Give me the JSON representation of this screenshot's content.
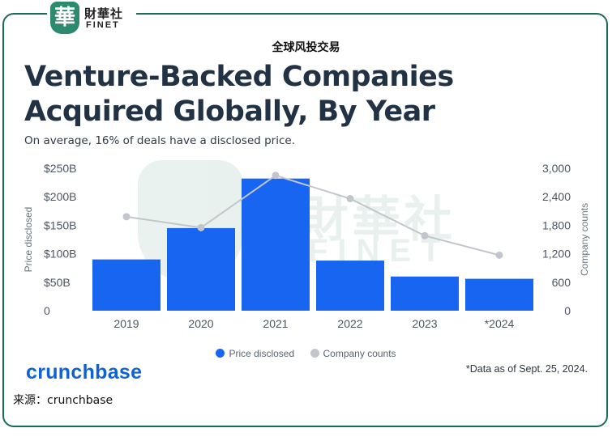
{
  "logo": {
    "seal_char": "華",
    "cn": "財華社",
    "en": "FINET"
  },
  "top_label": "全球风投交易",
  "title": "Venture-Backed Companies Acquired Globally, By Year",
  "subtitle": "On average, 16% of deals have a disclosed price.",
  "watermark": {
    "seal_char": "華",
    "cn": "財華社",
    "en": "FINET"
  },
  "brand": "crunchbase",
  "note": "*Data as of Sept. 25, 2024.",
  "source": "来源：crunchbase",
  "colors": {
    "bar": "#1865f2",
    "line": "#c2c6cc",
    "title": "#223245",
    "brand": "#0f62d6",
    "frame": "#1a6b5a"
  },
  "chart_data": {
    "type": "bar",
    "categories": [
      "2019",
      "2020",
      "2021",
      "2022",
      "2023",
      "*2024"
    ],
    "series": [
      {
        "name": "Price disclosed",
        "type": "bar",
        "axis": "left",
        "unit": "$B",
        "values": [
          90,
          145,
          232,
          88,
          60,
          56
        ]
      },
      {
        "name": "Company counts",
        "type": "line",
        "axis": "right",
        "values": [
          1980,
          1750,
          2850,
          2360,
          1580,
          1170
        ]
      }
    ],
    "y_left": {
      "label": "Price disclosed",
      "ticks": [
        "$250B",
        "$200B",
        "$150B",
        "$100B",
        "$50B",
        "0"
      ],
      "range": [
        0,
        250
      ]
    },
    "y_right": {
      "label": "Company counts",
      "ticks": [
        "3,000",
        "2,400",
        "1,800",
        "1,200",
        "600",
        "0"
      ],
      "range": [
        0,
        3000
      ]
    },
    "legend": [
      "Price disclosed",
      "Company counts"
    ],
    "legend_position": "bottom-center",
    "grid": false
  }
}
